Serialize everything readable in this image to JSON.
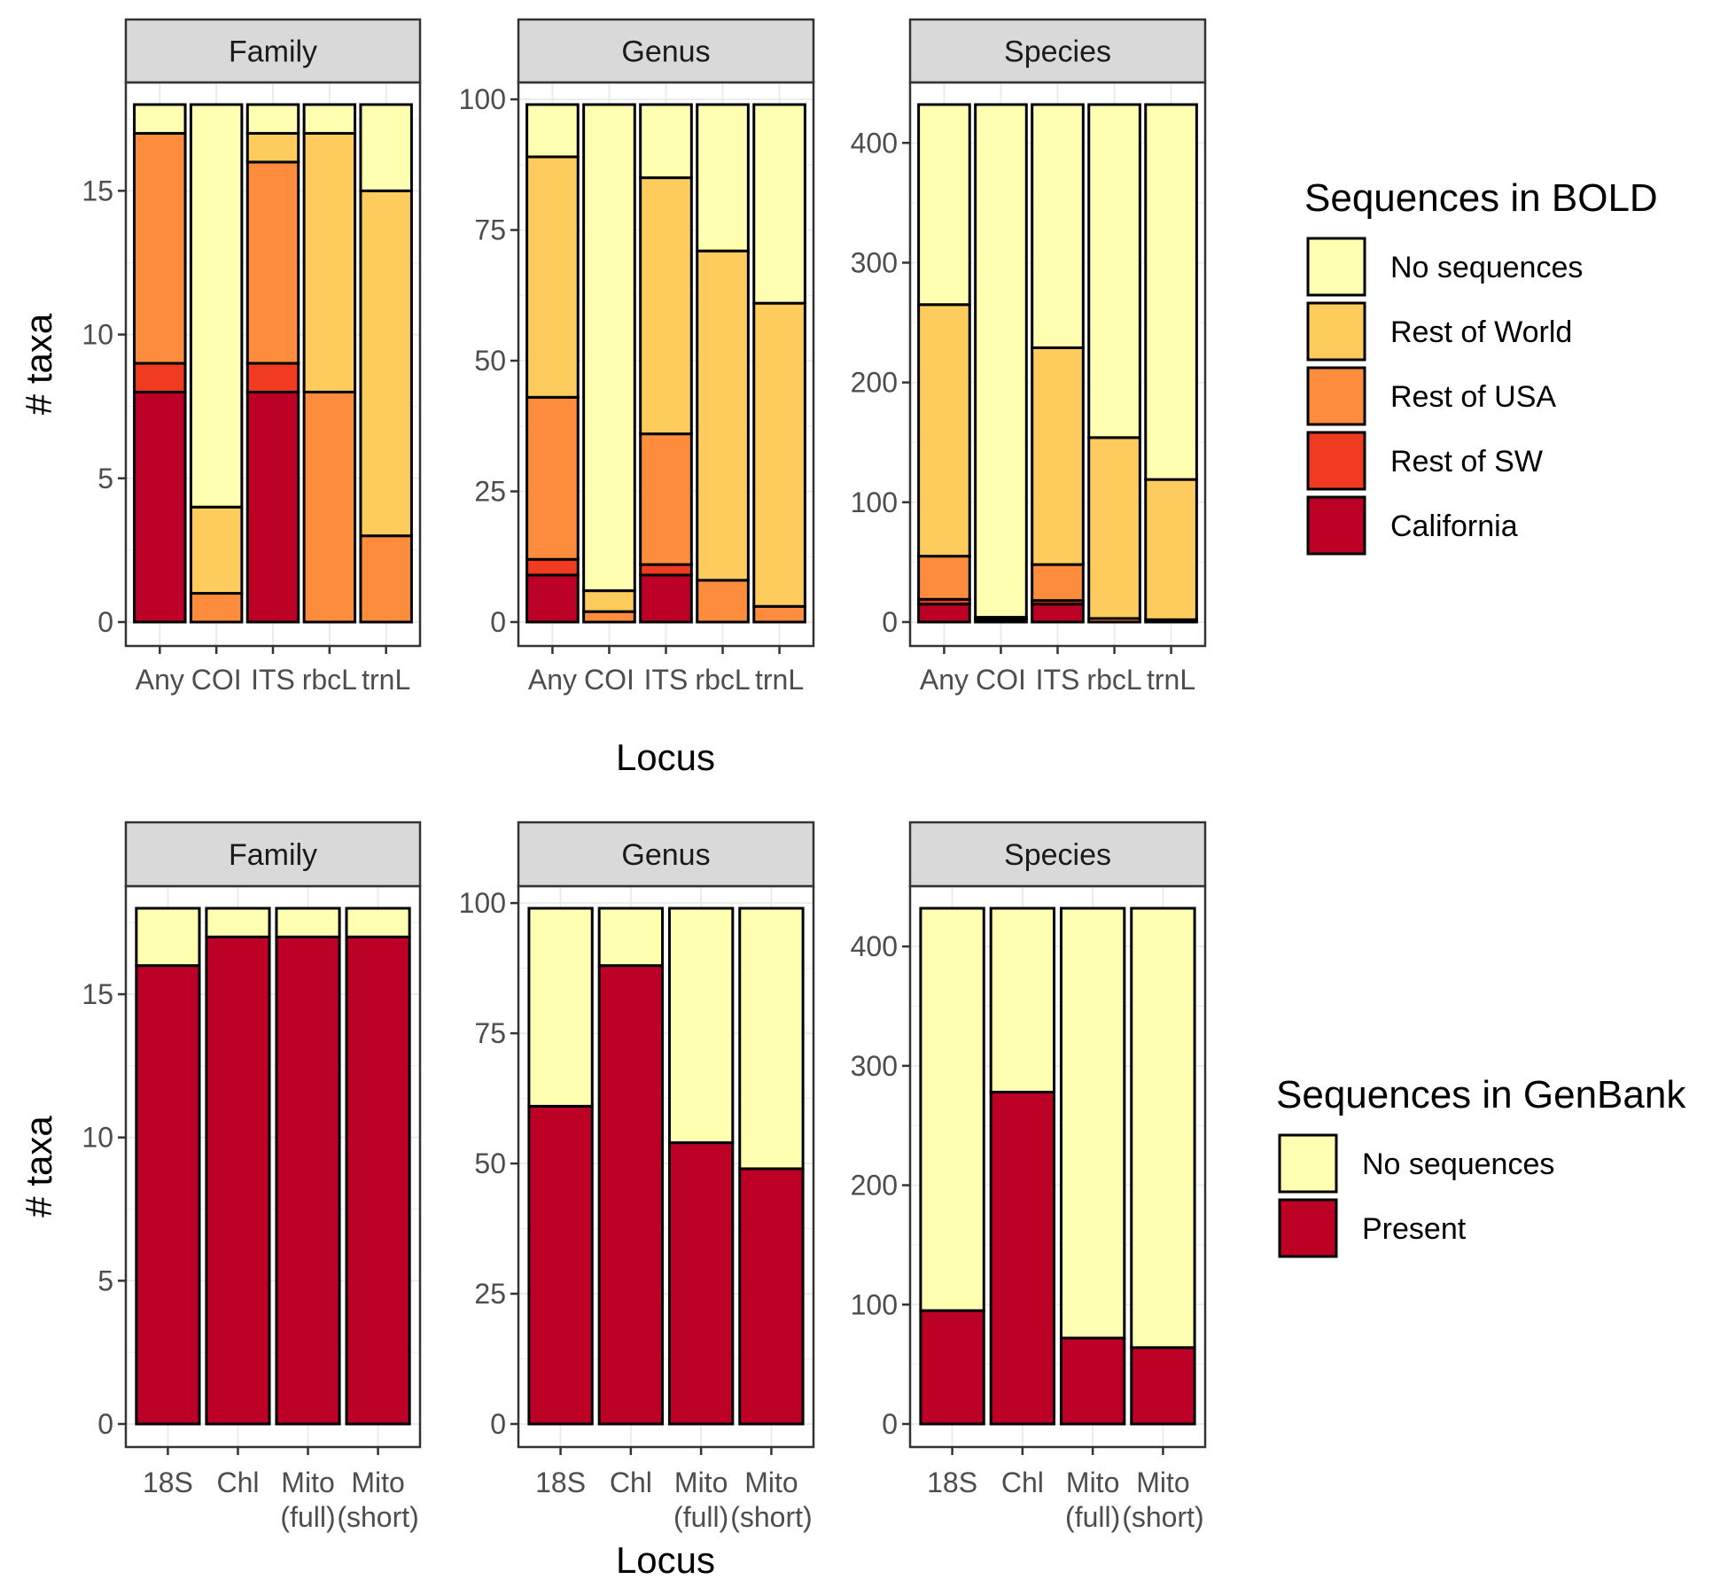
{
  "colors": {
    "No sequences": "#FFFFB2",
    "Rest of World": "#FECC5C",
    "Rest of USA": "#FD8D3C",
    "Rest of SW": "#F03B20",
    "California": "#BD0026",
    "Present": "#BD0026",
    "strip_fill": "#D9D9D9",
    "grid": "#EBEBEB"
  },
  "chart_data": [
    {
      "name": "bold",
      "type": "bar",
      "stacked": true,
      "xlabel": "Locus",
      "ylabel": "# taxa",
      "legend": {
        "title": "Sequences in BOLD",
        "position": "right",
        "entries": [
          "No sequences",
          "Rest of World",
          "Rest of USA",
          "Rest of SW",
          "California"
        ]
      },
      "categories": [
        "Any",
        "COI",
        "ITS",
        "rbcL",
        "trnL"
      ],
      "stack_order": [
        "California",
        "Rest of SW",
        "Rest of USA",
        "Rest of World",
        "No sequences"
      ],
      "facets": [
        {
          "label": "Family",
          "ylim": [
            0,
            18.9
          ],
          "yticks": [
            0,
            5,
            10,
            15
          ],
          "series": [
            {
              "name": "California",
              "values": [
                8,
                0,
                8,
                0,
                0
              ]
            },
            {
              "name": "Rest of SW",
              "values": [
                1,
                0,
                1,
                0,
                0
              ]
            },
            {
              "name": "Rest of USA",
              "values": [
                8,
                1,
                7,
                8,
                3
              ]
            },
            {
              "name": "Rest of World",
              "values": [
                0,
                3,
                1,
                9,
                12
              ]
            },
            {
              "name": "No sequences",
              "values": [
                1,
                14,
                1,
                1,
                3
              ]
            }
          ]
        },
        {
          "label": "Genus",
          "ylim": [
            0,
            104
          ],
          "yticks": [
            0,
            25,
            50,
            75,
            100
          ],
          "series": [
            {
              "name": "California",
              "values": [
                9,
                0,
                9,
                0,
                0
              ]
            },
            {
              "name": "Rest of SW",
              "values": [
                3,
                0,
                2,
                0,
                0
              ]
            },
            {
              "name": "Rest of USA",
              "values": [
                31,
                2,
                25,
                8,
                3
              ]
            },
            {
              "name": "Rest of World",
              "values": [
                46,
                4,
                49,
                63,
                58
              ]
            },
            {
              "name": "No sequences",
              "values": [
                10,
                93,
                14,
                28,
                38
              ]
            }
          ]
        },
        {
          "label": "Species",
          "ylim": [
            0,
            453
          ],
          "yticks": [
            0,
            100,
            200,
            300,
            400
          ],
          "series": [
            {
              "name": "California",
              "values": [
                15,
                0,
                15,
                0,
                0
              ]
            },
            {
              "name": "Rest of SW",
              "values": [
                4,
                0,
                3,
                0,
                0
              ]
            },
            {
              "name": "Rest of USA",
              "values": [
                36,
                2,
                30,
                3,
                2
              ]
            },
            {
              "name": "Rest of World",
              "values": [
                210,
                2,
                181,
                151,
                117
              ]
            },
            {
              "name": "No sequences",
              "values": [
                167,
                428,
                203,
                278,
                313
              ]
            }
          ]
        }
      ]
    },
    {
      "name": "genbank",
      "type": "bar",
      "stacked": true,
      "xlabel": "Locus",
      "ylabel": "# taxa",
      "legend": {
        "title": "Sequences in GenBank",
        "position": "right",
        "entries": [
          "No sequences",
          "Present"
        ]
      },
      "categories": [
        [
          "18S"
        ],
        [
          "Chl"
        ],
        [
          "Mito",
          "(full)"
        ],
        [
          "Mito",
          "(short)"
        ]
      ],
      "stack_order": [
        "Present",
        "No sequences"
      ],
      "facets": [
        {
          "label": "Family",
          "ylim": [
            0,
            18.9
          ],
          "yticks": [
            0,
            5,
            10,
            15
          ],
          "series": [
            {
              "name": "Present",
              "values": [
                16,
                17,
                17,
                17
              ]
            },
            {
              "name": "No sequences",
              "values": [
                2,
                1,
                1,
                1
              ]
            }
          ]
        },
        {
          "label": "Genus",
          "ylim": [
            0,
            104
          ],
          "yticks": [
            0,
            25,
            50,
            75,
            100
          ],
          "series": [
            {
              "name": "Present",
              "values": [
                61,
                88,
                54,
                49
              ]
            },
            {
              "name": "No sequences",
              "values": [
                38,
                11,
                45,
                50
              ]
            }
          ]
        },
        {
          "label": "Species",
          "ylim": [
            0,
            453
          ],
          "yticks": [
            0,
            100,
            200,
            300,
            400
          ],
          "series": [
            {
              "name": "Present",
              "values": [
                95,
                278,
                72,
                64
              ]
            },
            {
              "name": "No sequences",
              "values": [
                337,
                154,
                360,
                368
              ]
            }
          ]
        }
      ]
    }
  ]
}
